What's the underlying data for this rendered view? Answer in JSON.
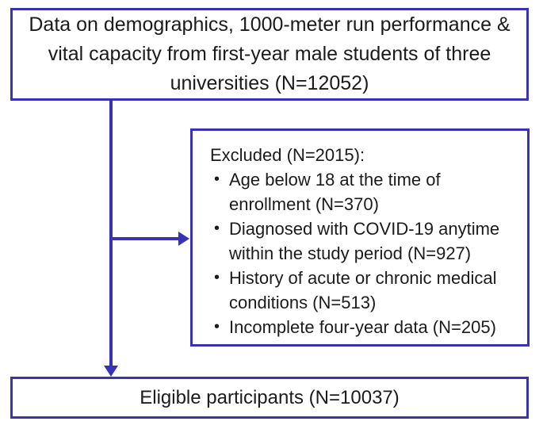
{
  "colors": {
    "line": "#3733b4",
    "text": "#1b1b1b",
    "background": "#ffffff"
  },
  "flowchart": {
    "source_box": {
      "text": "Data on demographics, 1000-meter run performance & vital capacity from first-year male students of three universities (N=12052)"
    },
    "excluded_box": {
      "title": "Excluded (N=2015):",
      "items": [
        "Age below 18 at the time of enrollment (N=370)",
        "Diagnosed with COVID-19 anytime within the study period (N=927)",
        "History of acute or chronic medical conditions (N=513)",
        "Incomplete four-year data (N=205)"
      ]
    },
    "eligible_box": {
      "text": "Eligible participants (N=10037)"
    }
  }
}
